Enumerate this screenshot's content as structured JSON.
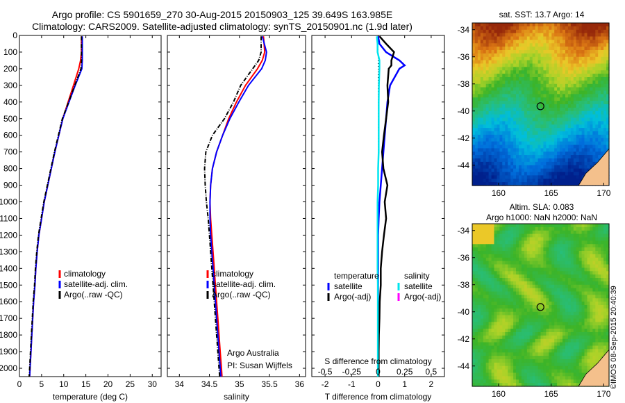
{
  "header": {
    "line1": "Argo profile: CS 5901659_270 30-Aug-2015 20150903_125 39.649S 163.985E",
    "line2": "Climatology: CARS2009. Satellite-adjusted climatology: synTS_20150901.nc (1.9d later)"
  },
  "depth_ticks": [
    "0",
    "100",
    "200",
    "300",
    "400",
    "500",
    "600",
    "700",
    "800",
    "900",
    "1000",
    "1100",
    "1200",
    "1300",
    "1400",
    "1500",
    "1600",
    "1700",
    "1800",
    "1900",
    "2000"
  ],
  "colors": {
    "climatology": "#ff0000",
    "satellite": "#0000ff",
    "argo": "#000000",
    "satellite_S": "#00e5ee",
    "argo_S": "#ff00ff",
    "land": "#f4c08c"
  },
  "chart_data": [
    {
      "type": "line",
      "panel": "temperature",
      "xlabel": "temperature (deg C)",
      "xlim": [
        0,
        32
      ],
      "ylim": [
        2050,
        0
      ],
      "x_ticks": [
        "0",
        "5",
        "10",
        "15",
        "20",
        "25",
        "30"
      ],
      "legend": [
        "climatology",
        "satellite-adj. clim.",
        "Argo(..raw -QC)"
      ],
      "legend_placement": "center",
      "depth": [
        5,
        100,
        150,
        200,
        300,
        400,
        500,
        600,
        700,
        800,
        900,
        1000,
        1100,
        1200,
        1300,
        1400,
        1500,
        1600,
        1700,
        1800,
        1900,
        2000,
        2050
      ],
      "series": [
        {
          "name": "climatology",
          "values": [
            14.0,
            14.0,
            13.8,
            13.4,
            12.2,
            11.0,
            9.8,
            8.9,
            8.0,
            7.2,
            6.4,
            5.6,
            5.0,
            4.4,
            4.0,
            3.7,
            3.5,
            3.2,
            3.0,
            2.8,
            2.6,
            2.4,
            2.3
          ]
        },
        {
          "name": "satellite-adj. clim.",
          "values": [
            14.2,
            14.2,
            14.2,
            14.1,
            12.6,
            11.2,
            9.8,
            8.9,
            8.0,
            7.2,
            6.4,
            5.6,
            5.0,
            4.4,
            4.0,
            3.7,
            3.5,
            3.2,
            3.0,
            2.8,
            2.6,
            2.4,
            2.3
          ]
        },
        {
          "name": "Argo(..raw -QC)",
          "values": [
            14.0,
            14.0,
            14.0,
            13.9,
            12.5,
            11.1,
            9.7,
            8.8,
            7.9,
            7.1,
            6.3,
            5.5,
            4.9,
            4.3,
            3.9,
            3.6,
            3.4,
            3.1,
            2.9,
            2.7,
            2.5,
            2.3,
            2.2
          ]
        }
      ]
    },
    {
      "type": "line",
      "panel": "salinity",
      "xlabel": "salinity",
      "xlim": [
        33.8,
        36.1
      ],
      "ylim": [
        2050,
        0
      ],
      "x_ticks": [
        "34",
        "34.5",
        "35",
        "35.5",
        "36"
      ],
      "legend": [
        "climatology",
        "satellite-adj. clim.",
        "Argo(..raw -QC)"
      ],
      "legend_placement": "center",
      "annotation": [
        "Argo Australia",
        "PI: Susan Wijffels"
      ],
      "depth": [
        5,
        100,
        150,
        200,
        300,
        400,
        500,
        600,
        700,
        800,
        900,
        1000,
        1100,
        1200,
        1300,
        1400,
        1500,
        1600,
        1700,
        1800,
        1900,
        2000,
        2050
      ],
      "series": [
        {
          "name": "climatology",
          "values": [
            35.4,
            35.42,
            35.38,
            35.3,
            35.1,
            34.95,
            34.82,
            34.72,
            34.62,
            34.55,
            34.52,
            34.51,
            34.52,
            34.54,
            34.56,
            34.58,
            34.6,
            34.62,
            34.64,
            34.66,
            34.68,
            34.7,
            34.71
          ]
        },
        {
          "name": "satellite-adj. clim.",
          "values": [
            35.38,
            35.45,
            35.43,
            35.37,
            35.15,
            34.99,
            34.84,
            34.72,
            34.62,
            34.55,
            34.52,
            34.51,
            34.51,
            34.52,
            34.54,
            34.56,
            34.58,
            34.6,
            34.62,
            34.64,
            34.66,
            34.68,
            34.69
          ]
        },
        {
          "name": "Argo(..raw -QC)",
          "values": [
            35.36,
            35.36,
            35.32,
            35.22,
            35.02,
            34.9,
            34.75,
            34.55,
            34.44,
            34.42,
            34.43,
            34.45,
            34.48,
            34.5,
            34.52,
            34.54,
            34.56,
            34.58,
            34.6,
            34.62,
            34.64,
            34.66,
            34.67
          ]
        }
      ]
    },
    {
      "type": "line",
      "panel": "differences",
      "xlabel": "T difference from climatology",
      "x2label": "S difference from climatology",
      "xlim": [
        -2.5,
        2.5
      ],
      "ylim": [
        2050,
        0
      ],
      "x_ticks": [
        "-2",
        "-1",
        "0",
        "1",
        "2"
      ],
      "x2_ticks": [
        "-0.5",
        "-0.25",
        "0",
        "0.25",
        "0.5"
      ],
      "legend_headers": [
        "temperature",
        "salinity"
      ],
      "legend": [
        "satellite",
        "Argo(-adj)",
        "satellite",
        "Argo(-adj)"
      ],
      "legend_placement": "center",
      "depth": [
        5,
        50,
        100,
        150,
        180,
        200,
        300,
        400,
        500,
        600,
        700,
        800,
        900,
        1000,
        1100,
        1200,
        1300,
        1400,
        1500,
        1600,
        1700,
        1800,
        1900,
        2000,
        2050
      ],
      "series": [
        {
          "name": "temperature satellite",
          "values": [
            0.0,
            0.05,
            0.3,
            0.8,
            1.0,
            0.8,
            0.45,
            0.35,
            0.3,
            0.25,
            0.2,
            0.15,
            0.1,
            0.05,
            0.02,
            0.0,
            0.0,
            0.0,
            0.0,
            0.0,
            0.0,
            0.0,
            0.0,
            0.0,
            0.0
          ]
        },
        {
          "name": "temperature Argo(-adj)",
          "values": [
            0.05,
            0.3,
            0.6,
            0.5,
            0.5,
            0.4,
            0.35,
            0.38,
            0.3,
            0.22,
            0.15,
            0.2,
            0.35,
            0.25,
            0.3,
            0.22,
            0.15,
            0.1,
            0.1,
            0.06,
            0.05,
            0.03,
            0.02,
            0.02,
            0.02
          ]
        },
        {
          "name": "salinity satellite",
          "values": [
            -0.05,
            -0.02,
            -0.02,
            0.05,
            0.05,
            0.05,
            0.03,
            0.02,
            0.02,
            0.02,
            0.02,
            0.0,
            0.0,
            -0.02,
            -0.02,
            -0.02,
            -0.02,
            -0.02,
            -0.01,
            -0.01,
            -0.01,
            -0.01,
            -0.01,
            -0.01,
            -0.01
          ]
        }
      ]
    }
  ],
  "maps": {
    "sst": {
      "title": "sat. SST: 13.7 Argo: 14",
      "x_ticks": [
        "160",
        "165",
        "170"
      ],
      "y_ticks": [
        "-34",
        "-36",
        "-38",
        "-40",
        "-42",
        "-44"
      ],
      "marker": [
        163.985,
        -39.649
      ]
    },
    "sla": {
      "title_line1": "Altim. SLA: 0.083",
      "title_line2": "Argo h1000: NaN h2000: NaN",
      "x_ticks": [
        "160",
        "165",
        "170"
      ],
      "y_ticks": [
        "-34",
        "-36",
        "-38",
        "-40",
        "-42",
        "-44"
      ],
      "marker": [
        163.985,
        -39.649
      ]
    }
  },
  "credit": "©IMOS 08-Sep-2015 20:40:39"
}
